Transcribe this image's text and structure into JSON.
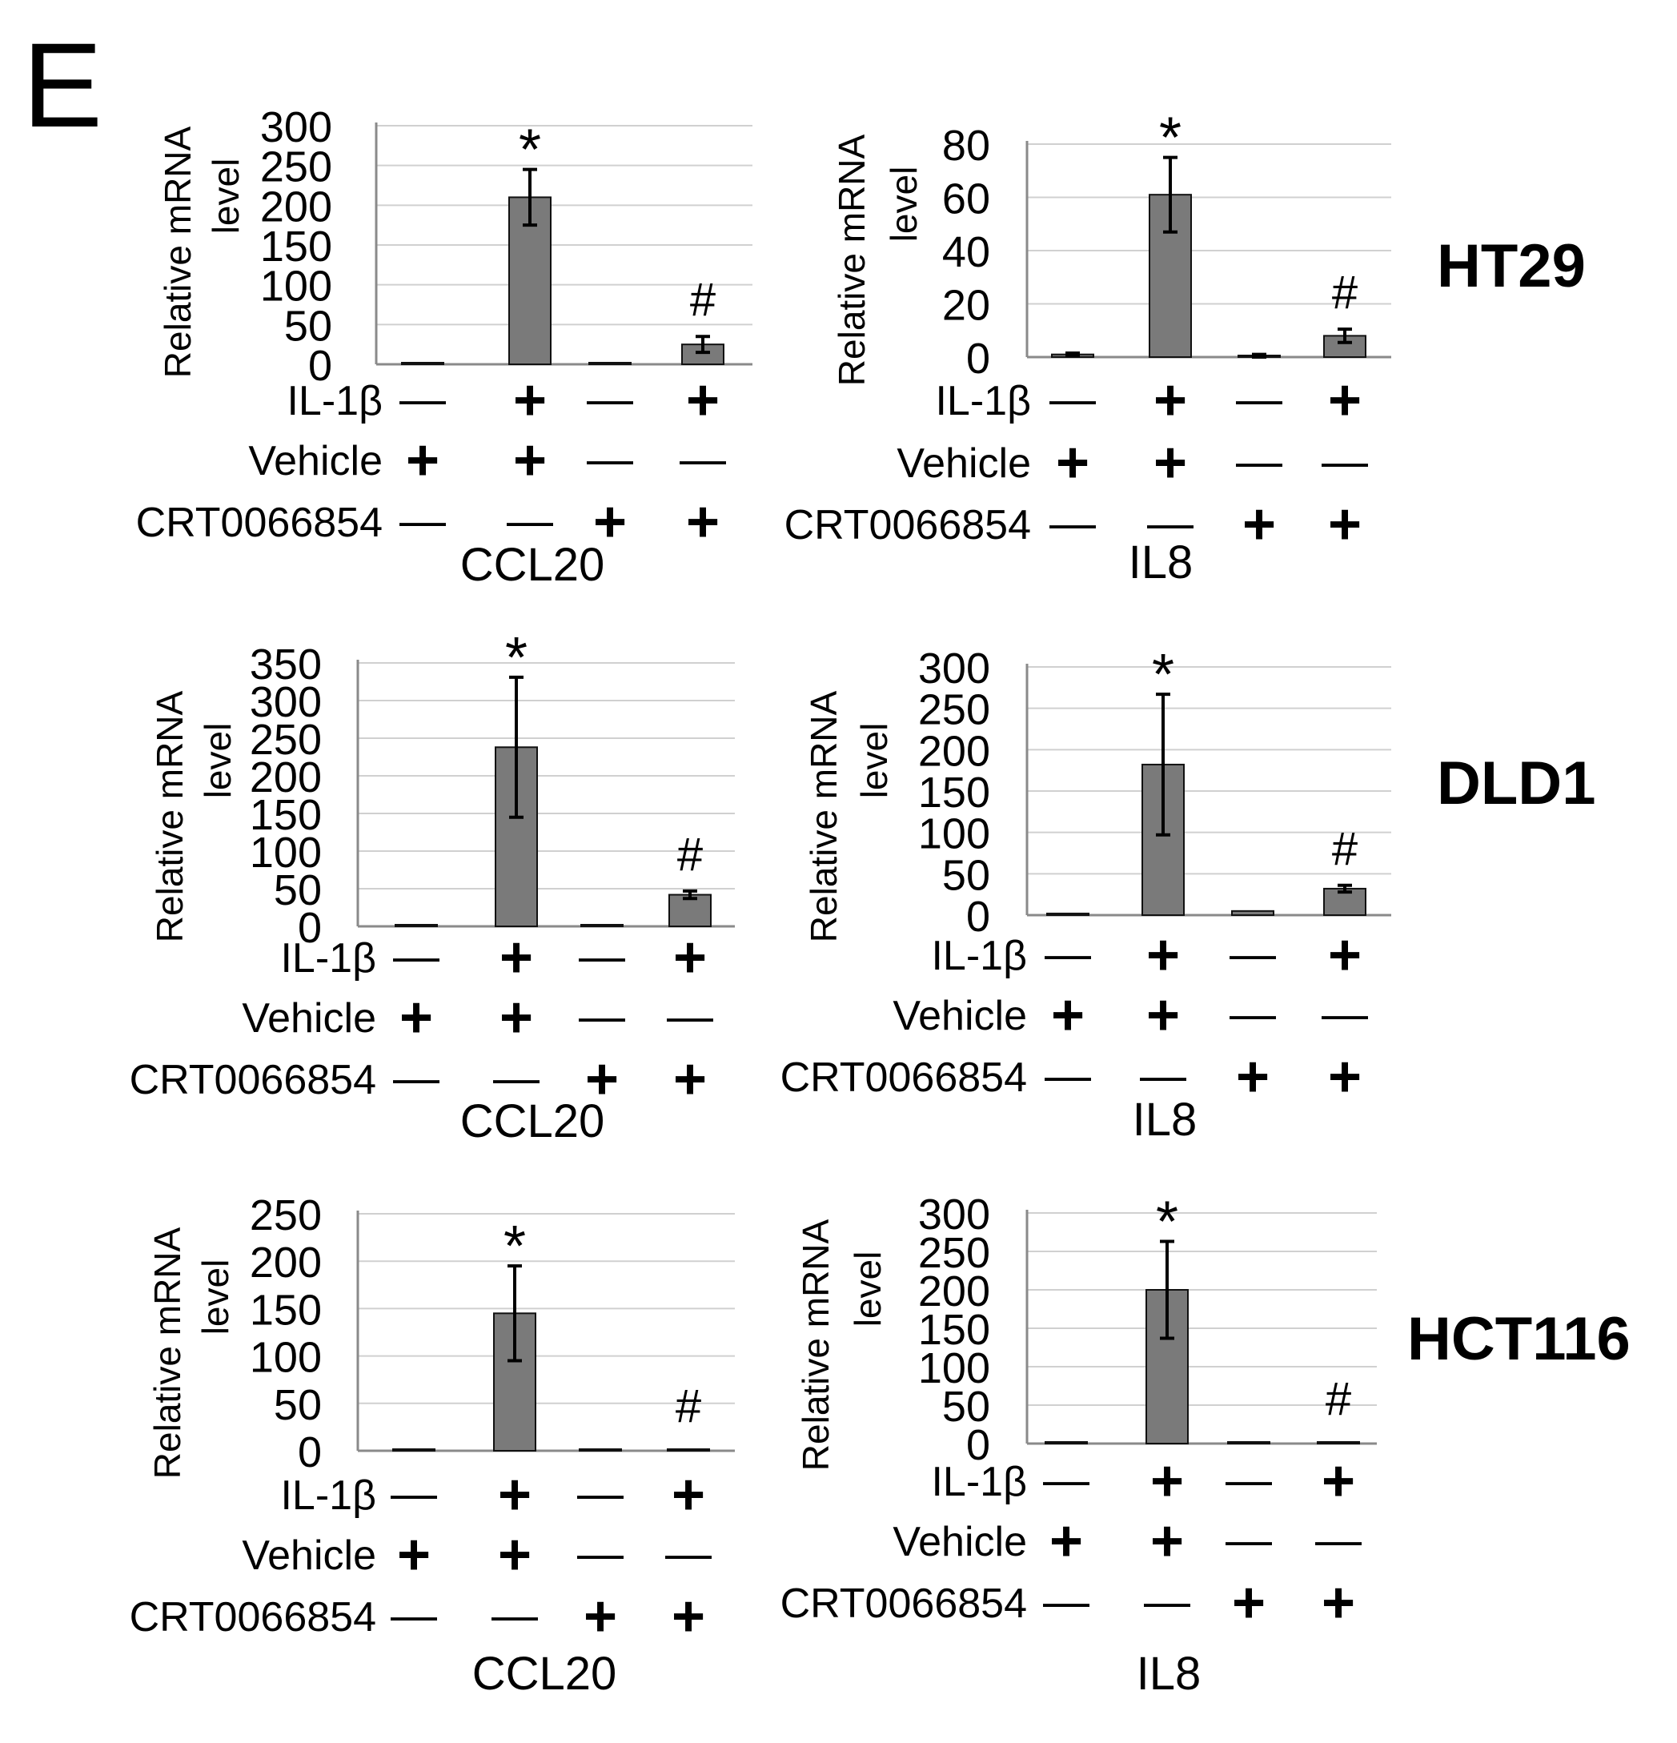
{
  "panel_letter": "E",
  "row_labels": [
    "IL-1β",
    "Vehicle",
    "CRT0066854"
  ],
  "chart_data": [
    {
      "type": "bar",
      "cell_line": "HT29",
      "gene": "CCL20",
      "ylabel": "Relative mRNA level",
      "ylim": [
        0,
        300
      ],
      "ticks": [
        0,
        50,
        100,
        150,
        200,
        250,
        300
      ],
      "grid": true,
      "series": [
        {
          "values": [
            1,
            210,
            1,
            25
          ],
          "errors": [
            1,
            35,
            1,
            10
          ]
        }
      ],
      "annotations": [
        "",
        "*",
        "",
        "#"
      ],
      "conditions": {
        "IL-1β": [
          "—",
          "+",
          "—",
          "+"
        ],
        "Vehicle": [
          "+",
          "+",
          "—",
          "—"
        ],
        "CRT0066854": [
          "—",
          "—",
          "+",
          "+"
        ]
      }
    },
    {
      "type": "bar",
      "cell_line": "HT29",
      "gene": "IL8",
      "ylabel": "Relative mRNA level",
      "ylim": [
        0,
        80
      ],
      "ticks": [
        0,
        20,
        40,
        60,
        80
      ],
      "grid": true,
      "series": [
        {
          "values": [
            1,
            61,
            0.5,
            8
          ],
          "errors": [
            0.5,
            14,
            0.5,
            2.5
          ]
        }
      ],
      "annotations": [
        "",
        "*",
        "",
        "#"
      ],
      "conditions": {
        "IL-1β": [
          "—",
          "+",
          "—",
          "+"
        ],
        "Vehicle": [
          "+",
          "+",
          "—",
          "—"
        ],
        "CRT0066854": [
          "—",
          "—",
          "+",
          "+"
        ]
      }
    },
    {
      "type": "bar",
      "cell_line": "DLD1",
      "gene": "CCL20",
      "ylabel": "Relative mRNA level",
      "ylim": [
        0,
        350
      ],
      "ticks": [
        0,
        50,
        100,
        150,
        200,
        250,
        300,
        350
      ],
      "grid": true,
      "series": [
        {
          "values": [
            1,
            238,
            2,
            42
          ],
          "errors": [
            1,
            93,
            1,
            5
          ]
        }
      ],
      "annotations": [
        "",
        "*",
        "",
        "#"
      ],
      "conditions": {
        "IL-1β": [
          "—",
          "+",
          "—",
          "+"
        ],
        "Vehicle": [
          "+",
          "+",
          "—",
          "—"
        ],
        "CRT0066854": [
          "—",
          "—",
          "+",
          "+"
        ]
      }
    },
    {
      "type": "bar",
      "cell_line": "DLD1",
      "gene": "IL8",
      "ylabel": "Relative mRNA level",
      "ylim": [
        0,
        300
      ],
      "ticks": [
        0,
        50,
        100,
        150,
        200,
        250,
        300
      ],
      "grid": true,
      "series": [
        {
          "values": [
            2,
            182,
            5,
            32
          ],
          "errors": [
            1,
            85,
            1,
            4
          ]
        }
      ],
      "annotations": [
        "",
        "*",
        "",
        "#"
      ],
      "conditions": {
        "IL-1β": [
          "—",
          "+",
          "—",
          "+"
        ],
        "Vehicle": [
          "+",
          "+",
          "—",
          "—"
        ],
        "CRT0066854": [
          "—",
          "—",
          "+",
          "+"
        ]
      }
    },
    {
      "type": "bar",
      "cell_line": "HCT116",
      "gene": "CCL20",
      "ylabel": "Relative mRNA level",
      "ylim": [
        0,
        250
      ],
      "ticks": [
        0,
        50,
        100,
        150,
        200,
        250
      ],
      "grid": true,
      "series": [
        {
          "values": [
            1,
            145,
            0.5,
            0.5
          ],
          "errors": [
            0.5,
            50,
            0.5,
            0.5
          ]
        }
      ],
      "annotations": [
        "",
        "*",
        "",
        "#"
      ],
      "conditions": {
        "IL-1β": [
          "—",
          "+",
          "—",
          "+"
        ],
        "Vehicle": [
          "+",
          "+",
          "—",
          "—"
        ],
        "CRT0066854": [
          "—",
          "—",
          "+",
          "+"
        ]
      }
    },
    {
      "type": "bar",
      "cell_line": "HCT116",
      "gene": "IL8",
      "ylabel": "Relative mRNA level",
      "ylim": [
        0,
        300
      ],
      "ticks": [
        0,
        50,
        100,
        150,
        200,
        250,
        300
      ],
      "grid": true,
      "series": [
        {
          "values": [
            2,
            200,
            1,
            1
          ],
          "errors": [
            1,
            63,
            0.5,
            0.5
          ]
        }
      ],
      "annotations": [
        "",
        "*",
        "",
        "#"
      ],
      "conditions": {
        "IL-1β": [
          "—",
          "+",
          "—",
          "+"
        ],
        "Vehicle": [
          "+",
          "+",
          "—",
          "—"
        ],
        "CRT0066854": [
          "—",
          "—",
          "+",
          "+"
        ]
      }
    }
  ]
}
